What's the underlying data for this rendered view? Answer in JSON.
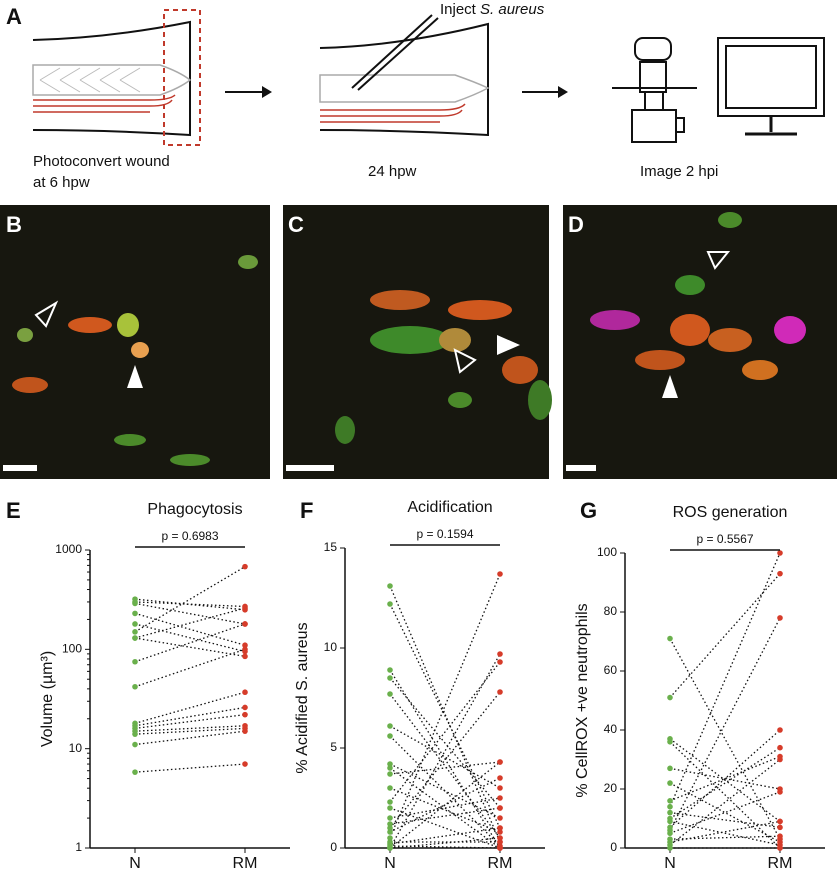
{
  "panel_labels": [
    "A",
    "B",
    "C",
    "D",
    "E",
    "F",
    "G"
  ],
  "schematic": {
    "step1_line1": "Photoconvert wound",
    "step1_line2": "at 6 hpw",
    "step2": "24 hpw",
    "inject_prefix": "Inject ",
    "inject_species": "S. aureus",
    "step3": "Image 2 hpi"
  },
  "chart_data": [
    {
      "type": "paired",
      "title": "Phagocytosis",
      "y_label": "Volume (µm³)",
      "annotation": "p = 0.6983",
      "categories": [
        "N",
        "RM"
      ],
      "colors": [
        "#6ab04c",
        "#d63c2a"
      ],
      "log_scale": true,
      "ylim": [
        1,
        1000
      ],
      "yticks": [
        1,
        10,
        100,
        1000
      ],
      "series": [
        {
          "values": [
            320,
            250
          ]
        },
        {
          "values": [
            300,
            270
          ]
        },
        {
          "values": [
            290,
            180
          ]
        },
        {
          "values": [
            230,
            110
          ]
        },
        {
          "values": [
            180,
            95
          ]
        },
        {
          "values": [
            150,
            680
          ]
        },
        {
          "values": [
            130,
            260
          ]
        },
        {
          "values": [
            130,
            85
          ]
        },
        {
          "values": [
            75,
            180
          ]
        },
        {
          "values": [
            42,
            100
          ]
        },
        {
          "values": [
            18,
            37
          ]
        },
        {
          "values": [
            17,
            26
          ]
        },
        {
          "values": [
            16,
            22
          ]
        },
        {
          "values": [
            15,
            17
          ]
        },
        {
          "values": [
            14,
            16
          ]
        },
        {
          "values": [
            11,
            15
          ]
        },
        {
          "values": [
            5.8,
            7
          ]
        }
      ]
    },
    {
      "type": "paired",
      "title": "Acidification",
      "y_label": "% Acidified S. aureus",
      "annotation": "p = 0.1594",
      "categories": [
        "N",
        "RM"
      ],
      "colors": [
        "#6ab04c",
        "#d63c2a"
      ],
      "log_scale": false,
      "ylim": [
        0,
        15
      ],
      "yticks": [
        0,
        5,
        10,
        15
      ],
      "series": [
        {
          "values": [
            13.1,
            0.3
          ]
        },
        {
          "values": [
            12.2,
            1
          ]
        },
        {
          "values": [
            8.9,
            0
          ]
        },
        {
          "values": [
            8.5,
            2
          ]
        },
        {
          "values": [
            7.7,
            0.5
          ]
        },
        {
          "values": [
            6.1,
            3
          ]
        },
        {
          "values": [
            5.6,
            0.1
          ]
        },
        {
          "values": [
            4.2,
            1.5
          ]
        },
        {
          "values": [
            4,
            0
          ]
        },
        {
          "values": [
            3.7,
            4.3
          ]
        },
        {
          "values": [
            3,
            0.8
          ]
        },
        {
          "values": [
            2.3,
            9.3
          ]
        },
        {
          "values": [
            2,
            0
          ]
        },
        {
          "values": [
            1.5,
            2.5
          ]
        },
        {
          "values": [
            1,
            7.8
          ]
        },
        {
          "values": [
            0.8,
            3.5
          ]
        },
        {
          "values": [
            0.5,
            13.7
          ]
        },
        {
          "values": [
            0.3,
            0.3
          ]
        },
        {
          "values": [
            0,
            9.7
          ]
        },
        {
          "values": [
            0,
            4.3
          ]
        },
        {
          "values": [
            0,
            0.5
          ]
        },
        {
          "values": [
            0.2,
            1
          ]
        },
        {
          "values": [
            0.1,
            0
          ]
        },
        {
          "values": [
            1.2,
            2
          ]
        }
      ]
    },
    {
      "type": "paired",
      "title": "ROS generation",
      "y_label": "% CellROX +ve neutrophils",
      "annotation": "p = 0.5567",
      "categories": [
        "N",
        "RM"
      ],
      "colors": [
        "#6ab04c",
        "#d63c2a"
      ],
      "log_scale": false,
      "ylim": [
        0,
        100
      ],
      "yticks": [
        0,
        20,
        40,
        60,
        80,
        100
      ],
      "series": [
        {
          "values": [
            71,
            3
          ]
        },
        {
          "values": [
            51,
            93
          ]
        },
        {
          "values": [
            37,
            9
          ]
        },
        {
          "values": [
            36,
            0
          ]
        },
        {
          "values": [
            27,
            20
          ]
        },
        {
          "values": [
            22,
            2
          ]
        },
        {
          "values": [
            16,
            31
          ]
        },
        {
          "values": [
            14,
            100
          ]
        },
        {
          "values": [
            12,
            7
          ]
        },
        {
          "values": [
            10,
            34
          ]
        },
        {
          "values": [
            9,
            1
          ]
        },
        {
          "values": [
            7,
            40
          ]
        },
        {
          "values": [
            6,
            78
          ]
        },
        {
          "values": [
            5,
            19
          ]
        },
        {
          "values": [
            3,
            4
          ]
        },
        {
          "values": [
            1,
            30
          ]
        },
        {
          "values": [
            0,
            0
          ]
        },
        {
          "values": [
            2,
            9
          ]
        }
      ]
    }
  ]
}
